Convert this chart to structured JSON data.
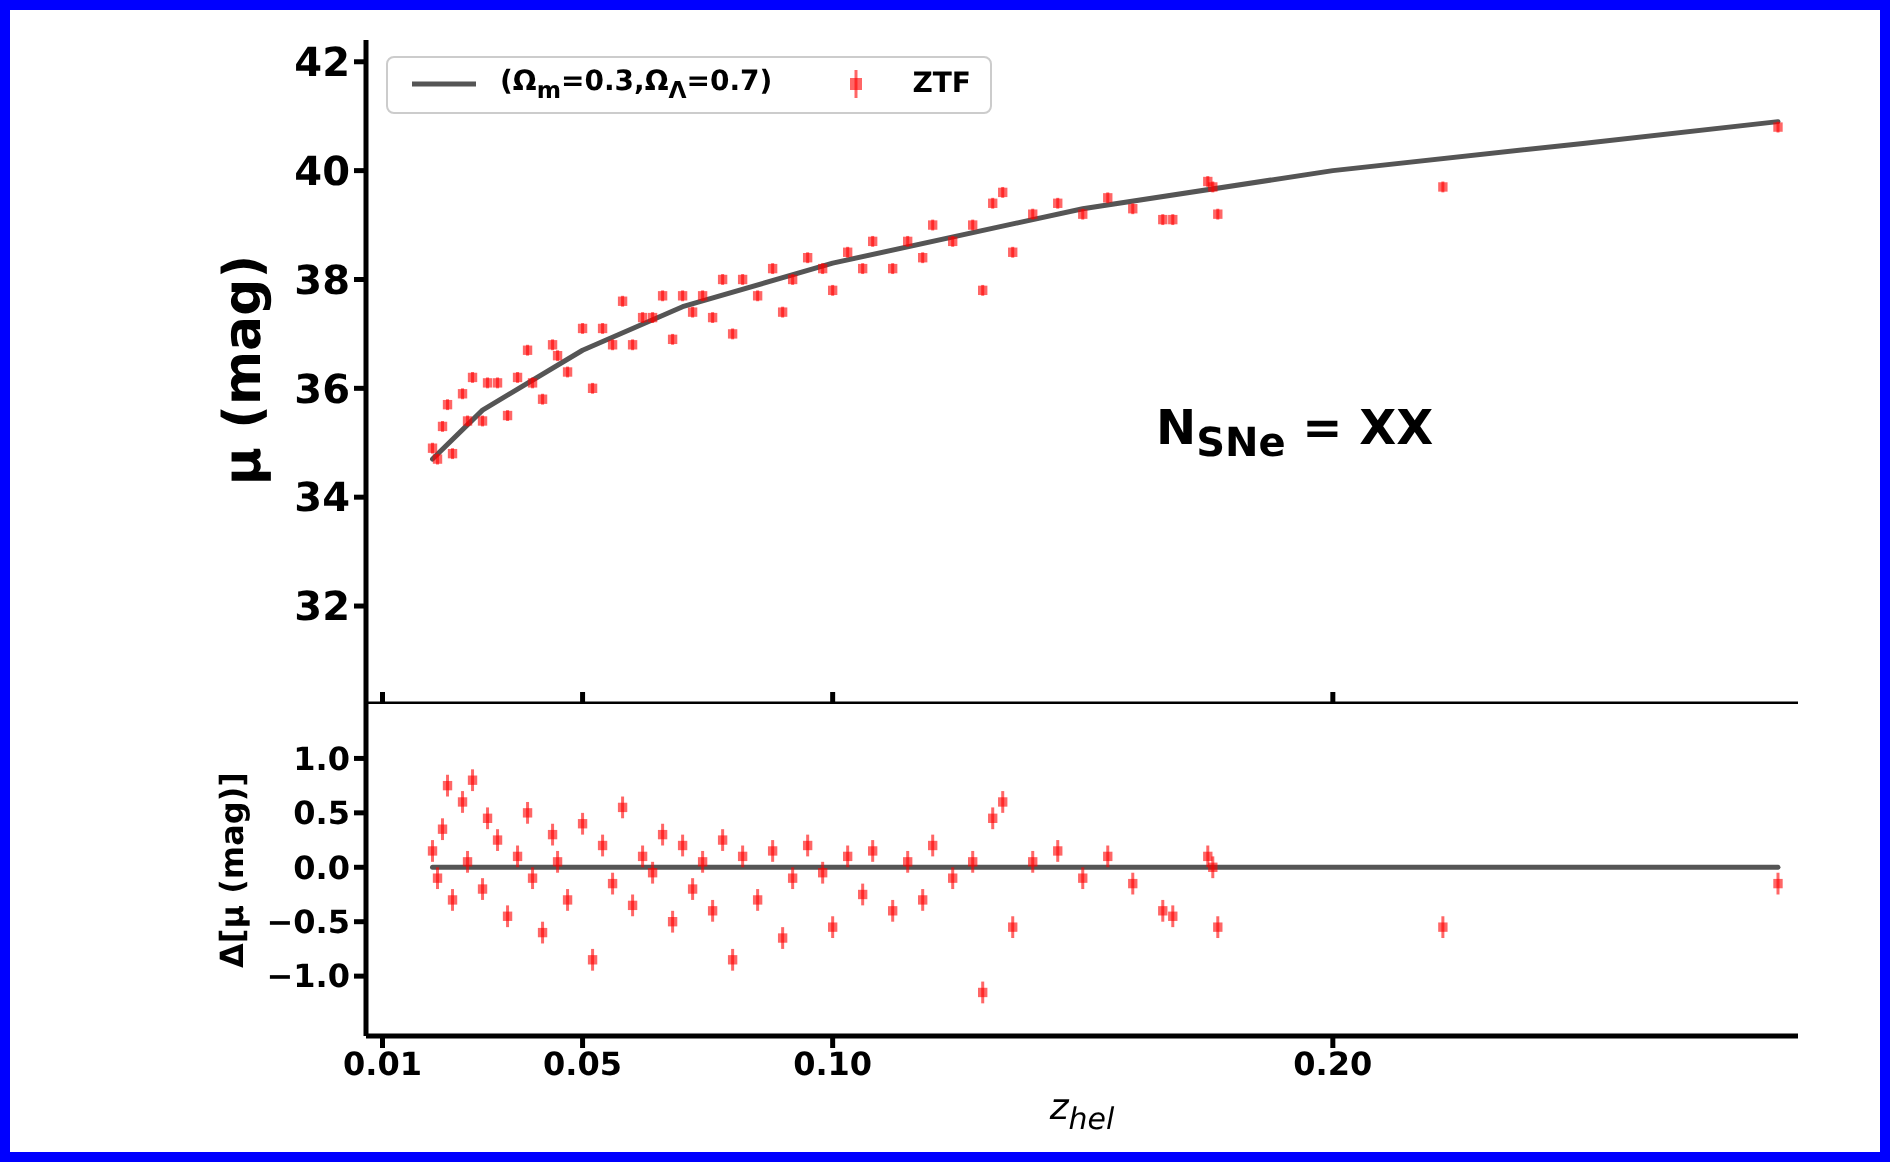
{
  "chart_data": [
    {
      "type": "scatter",
      "ylabel": "μ (mag)",
      "annotations": [
        "N$_{SNe}$ = XX"
      ],
      "xlim": [
        0.0067,
        0.293
      ],
      "xticks": [
        0.01,
        0.05,
        0.1,
        0.2
      ],
      "ylim": [
        30.2,
        42.4
      ],
      "yticks": [
        32,
        34,
        36,
        38,
        40,
        42
      ],
      "tick_labels": "y",
      "legend": "top left",
      "series": [
        {
          "name": "(Ω$_{m}$=0.3,Ω$_{Λ}$=0.7)",
          "type": "line",
          "color": "#555555",
          "x": [
            0.02,
            0.03,
            0.05,
            0.07,
            0.1,
            0.15,
            0.2,
            0.25,
            0.289
          ],
          "values": [
            34.7,
            35.6,
            36.7,
            37.5,
            38.3,
            39.3,
            40.0,
            40.5,
            40.9
          ]
        },
        {
          "name": "ZTF",
          "type": "scatter",
          "marker": "square",
          "color": "#ff0000",
          "x": [
            0.02,
            0.021,
            0.022,
            0.023,
            0.024,
            0.026,
            0.027,
            0.028,
            0.03,
            0.031,
            0.033,
            0.035,
            0.037,
            0.039,
            0.04,
            0.042,
            0.044,
            0.045,
            0.047,
            0.05,
            0.052,
            0.054,
            0.056,
            0.058,
            0.06,
            0.062,
            0.064,
            0.066,
            0.068,
            0.07,
            0.072,
            0.074,
            0.076,
            0.078,
            0.08,
            0.082,
            0.085,
            0.088,
            0.09,
            0.092,
            0.095,
            0.098,
            0.1,
            0.103,
            0.106,
            0.108,
            0.112,
            0.115,
            0.118,
            0.12,
            0.124,
            0.128,
            0.13,
            0.132,
            0.134,
            0.136,
            0.14,
            0.145,
            0.15,
            0.155,
            0.16,
            0.166,
            0.168,
            0.175,
            0.176,
            0.177,
            0.222,
            0.289
          ],
          "values": [
            34.9,
            34.7,
            35.3,
            35.7,
            34.8,
            35.9,
            35.4,
            36.2,
            35.4,
            36.1,
            36.1,
            35.5,
            36.2,
            36.7,
            36.1,
            35.8,
            36.8,
            36.6,
            36.3,
            37.1,
            36.0,
            37.1,
            36.8,
            37.6,
            36.8,
            37.3,
            37.3,
            37.7,
            36.9,
            37.7,
            37.4,
            37.7,
            37.3,
            38.0,
            37.0,
            38.0,
            37.7,
            38.2,
            37.4,
            38.0,
            38.4,
            38.2,
            37.8,
            38.5,
            38.2,
            38.7,
            38.2,
            38.7,
            38.4,
            39.0,
            38.7,
            39.0,
            37.8,
            39.4,
            39.6,
            38.5,
            39.2,
            39.4,
            39.2,
            39.5,
            39.3,
            39.1,
            39.1,
            39.8,
            39.7,
            39.2,
            39.7,
            40.8
          ],
          "errors": [
            0.1,
            0.1,
            0.1,
            0.1,
            0.1,
            0.1,
            0.1,
            0.1,
            0.1,
            0.1,
            0.1,
            0.1,
            0.1,
            0.1,
            0.1,
            0.1,
            0.1,
            0.1,
            0.1,
            0.1,
            0.1,
            0.1,
            0.1,
            0.1,
            0.1,
            0.1,
            0.1,
            0.1,
            0.1,
            0.1,
            0.1,
            0.1,
            0.1,
            0.1,
            0.1,
            0.1,
            0.1,
            0.1,
            0.1,
            0.1,
            0.1,
            0.1,
            0.1,
            0.1,
            0.1,
            0.1,
            0.1,
            0.1,
            0.1,
            0.1,
            0.1,
            0.1,
            0.1,
            0.1,
            0.1,
            0.1,
            0.1,
            0.1,
            0.1,
            0.1,
            0.1,
            0.1,
            0.1,
            0.1,
            0.1,
            0.1,
            0.1,
            0.1
          ]
        }
      ]
    },
    {
      "type": "scatter",
      "xlabel": "z$_{hel}$",
      "ylabel": "Δ[μ (mag)]",
      "xlim": [
        0.0067,
        0.293
      ],
      "xticks": [
        0.01,
        0.05,
        {
          "value": 0.1,
          "label": "0.10"
        },
        {
          "value": 0.2,
          "label": "0.20"
        }
      ],
      "ylim": [
        -1.55,
        1.5
      ],
      "yticks": [
        {
          "value": -1,
          "label": "−1.0"
        },
        {
          "value": -0.5,
          "label": "−0.5"
        },
        {
          "value": 0,
          "label": "0.0"
        },
        {
          "value": 0.5,
          "label": "0.5"
        },
        {
          "value": 1,
          "label": "1.0"
        }
      ],
      "series": [
        {
          "type": "line",
          "color": "#555555",
          "x": [
            0.02,
            0.289
          ],
          "values": [
            0,
            0
          ]
        },
        {
          "type": "scatter",
          "marker": "square",
          "color": "#ff0000",
          "x": [
            0.02,
            0.021,
            0.022,
            0.023,
            0.024,
            0.026,
            0.027,
            0.028,
            0.03,
            0.031,
            0.033,
            0.035,
            0.037,
            0.039,
            0.04,
            0.042,
            0.044,
            0.045,
            0.047,
            0.05,
            0.052,
            0.054,
            0.056,
            0.058,
            0.06,
            0.062,
            0.064,
            0.066,
            0.068,
            0.07,
            0.072,
            0.074,
            0.076,
            0.078,
            0.08,
            0.082,
            0.085,
            0.088,
            0.09,
            0.092,
            0.095,
            0.098,
            0.1,
            0.103,
            0.106,
            0.108,
            0.112,
            0.115,
            0.118,
            0.12,
            0.124,
            0.128,
            0.13,
            0.132,
            0.134,
            0.136,
            0.14,
            0.145,
            0.15,
            0.155,
            0.16,
            0.166,
            0.168,
            0.175,
            0.176,
            0.177,
            0.222,
            0.289
          ],
          "values": [
            0.15,
            -0.1,
            0.35,
            0.75,
            -0.3,
            0.6,
            0.05,
            0.8,
            -0.2,
            0.45,
            0.25,
            -0.45,
            0.1,
            0.5,
            -0.1,
            -0.6,
            0.3,
            0.05,
            -0.3,
            0.4,
            -0.85,
            0.2,
            -0.15,
            0.55,
            -0.35,
            0.1,
            -0.05,
            0.3,
            -0.5,
            0.2,
            -0.2,
            0.05,
            -0.4,
            0.25,
            -0.85,
            0.1,
            -0.3,
            0.15,
            -0.65,
            -0.1,
            0.2,
            -0.05,
            -0.55,
            0.1,
            -0.25,
            0.15,
            -0.4,
            0.05,
            -0.3,
            0.2,
            -0.1,
            0.05,
            -1.15,
            0.45,
            0.6,
            -0.55,
            0.05,
            0.15,
            -0.1,
            0.1,
            -0.15,
            -0.4,
            -0.45,
            0.1,
            0.0,
            -0.55,
            -0.55,
            -0.15
          ],
          "errors": [
            0.1,
            0.1,
            0.1,
            0.1,
            0.1,
            0.1,
            0.1,
            0.1,
            0.1,
            0.1,
            0.1,
            0.1,
            0.1,
            0.1,
            0.1,
            0.1,
            0.1,
            0.1,
            0.1,
            0.1,
            0.1,
            0.1,
            0.1,
            0.1,
            0.1,
            0.1,
            0.1,
            0.1,
            0.1,
            0.1,
            0.1,
            0.1,
            0.1,
            0.1,
            0.1,
            0.1,
            0.1,
            0.1,
            0.1,
            0.1,
            0.1,
            0.1,
            0.1,
            0.1,
            0.1,
            0.1,
            0.1,
            0.1,
            0.1,
            0.1,
            0.1,
            0.1,
            0.1,
            0.1,
            0.1,
            0.1,
            0.1,
            0.1,
            0.1,
            0.1,
            0.1,
            0.1,
            0.1,
            0.1,
            0.1,
            0.1,
            0.1,
            0.1
          ]
        }
      ]
    }
  ]
}
